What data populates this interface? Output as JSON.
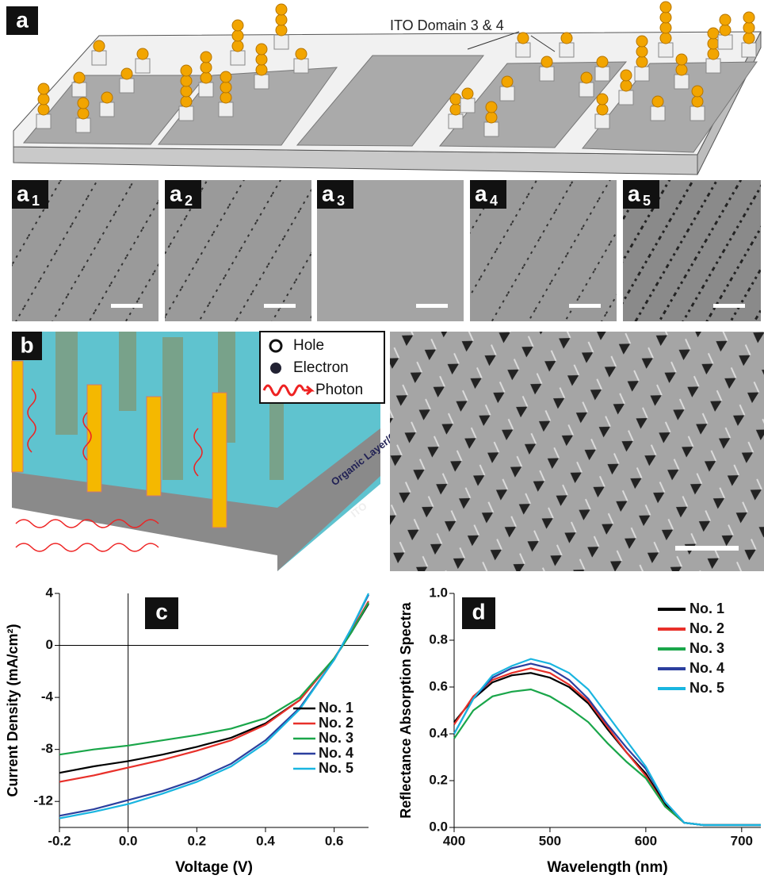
{
  "panel_a": {
    "label": "a",
    "annotation": "ITO Domain 3 & 4"
  },
  "sem_panels": [
    {
      "label": "a",
      "sub": "1"
    },
    {
      "label": "a",
      "sub": "2"
    },
    {
      "label": "a",
      "sub": "3"
    },
    {
      "label": "a",
      "sub": "4"
    },
    {
      "label": "a",
      "sub": "5"
    }
  ],
  "panel_b": {
    "label": "b",
    "legend": [
      "Hole",
      "Electron",
      "Photon"
    ],
    "layer_labels": [
      "Organic Layer/Cathode",
      "ITO"
    ]
  },
  "chart_data": [
    {
      "type": "line",
      "label": "c",
      "x_label": "Voltage (V)",
      "y_label": "Current Density (mA/cm²)",
      "x": [
        -0.2,
        -0.1,
        0,
        0.1,
        0.2,
        0.3,
        0.4,
        0.5,
        0.6,
        0.65,
        0.7
      ],
      "xlim": [
        -0.2,
        0.7
      ],
      "xticks": [
        -0.2,
        {
          "value": 0,
          "label": "0.0"
        },
        0.2,
        0.4,
        0.6
      ],
      "ylim": [
        -14,
        4
      ],
      "yticks": [
        4,
        0,
        -4,
        -8,
        -12
      ],
      "axes_cross_zero": true,
      "legend": "lower right",
      "series": [
        {
          "name": "No. 1",
          "color": "#000000",
          "values": [
            -9.8,
            -9.3,
            -8.9,
            -8.4,
            -7.8,
            -7.1,
            -6.0,
            -4.2,
            -1.0,
            1.0,
            3.2
          ]
        },
        {
          "name": "No. 2",
          "color": "#e8302a",
          "values": [
            -10.5,
            -10.0,
            -9.4,
            -8.8,
            -8.1,
            -7.3,
            -6.1,
            -4.2,
            -1.0,
            1.1,
            3.4
          ]
        },
        {
          "name": "No. 3",
          "color": "#1aa64a",
          "values": [
            -8.4,
            -8.0,
            -7.7,
            -7.3,
            -6.9,
            -6.4,
            -5.6,
            -4.0,
            -1.0,
            1.0,
            3.3
          ]
        },
        {
          "name": "No. 4",
          "color": "#2b3f9e",
          "values": [
            -13.1,
            -12.6,
            -11.9,
            -11.2,
            -10.3,
            -9.1,
            -7.3,
            -4.8,
            -1.1,
            1.3,
            3.9
          ]
        },
        {
          "name": "No. 5",
          "color": "#19b5e0",
          "values": [
            -13.3,
            -12.8,
            -12.2,
            -11.4,
            -10.5,
            -9.3,
            -7.5,
            -4.9,
            -1.1,
            1.3,
            4.0
          ]
        }
      ]
    },
    {
      "type": "line",
      "label": "d",
      "x_label": "Wavelength (nm)",
      "y_label": "Reflectance Absorption Spectra",
      "x": [
        400,
        420,
        440,
        460,
        480,
        500,
        520,
        540,
        560,
        580,
        600,
        620,
        640,
        660,
        680,
        700,
        720
      ],
      "xlim": [
        400,
        720
      ],
      "xticks": [
        400,
        500,
        600,
        700
      ],
      "ylim": [
        0,
        1
      ],
      "yticks": [
        {
          "value": 0,
          "label": "0.0"
        },
        0.2,
        0.4,
        0.6,
        0.8,
        {
          "value": 1,
          "label": "1.0"
        }
      ],
      "axes_cross_zero": false,
      "legend": "upper right",
      "series": [
        {
          "name": "No. 1",
          "color": "#000000",
          "values": [
            0.45,
            0.55,
            0.62,
            0.65,
            0.66,
            0.64,
            0.6,
            0.53,
            0.42,
            0.32,
            0.23,
            0.1,
            0.02,
            0.01,
            0.01,
            0.01,
            0.01
          ]
        },
        {
          "name": "No. 2",
          "color": "#e8302a",
          "values": [
            0.44,
            0.56,
            0.63,
            0.66,
            0.68,
            0.66,
            0.61,
            0.54,
            0.43,
            0.32,
            0.22,
            0.09,
            0.02,
            0.01,
            0.01,
            0.01,
            0.01
          ]
        },
        {
          "name": "No. 3",
          "color": "#1aa64a",
          "values": [
            0.38,
            0.5,
            0.56,
            0.58,
            0.59,
            0.56,
            0.51,
            0.45,
            0.36,
            0.28,
            0.21,
            0.09,
            0.02,
            0.01,
            0.01,
            0.01,
            0.01
          ]
        },
        {
          "name": "No. 4",
          "color": "#2b3f9e",
          "values": [
            0.4,
            0.55,
            0.64,
            0.68,
            0.7,
            0.68,
            0.63,
            0.55,
            0.44,
            0.34,
            0.25,
            0.11,
            0.02,
            0.01,
            0.01,
            0.01,
            0.01
          ]
        },
        {
          "name": "No. 5",
          "color": "#19b5e0",
          "values": [
            0.4,
            0.55,
            0.65,
            0.69,
            0.72,
            0.7,
            0.66,
            0.59,
            0.48,
            0.37,
            0.26,
            0.11,
            0.02,
            0.01,
            0.01,
            0.01,
            0.01
          ]
        }
      ]
    }
  ]
}
